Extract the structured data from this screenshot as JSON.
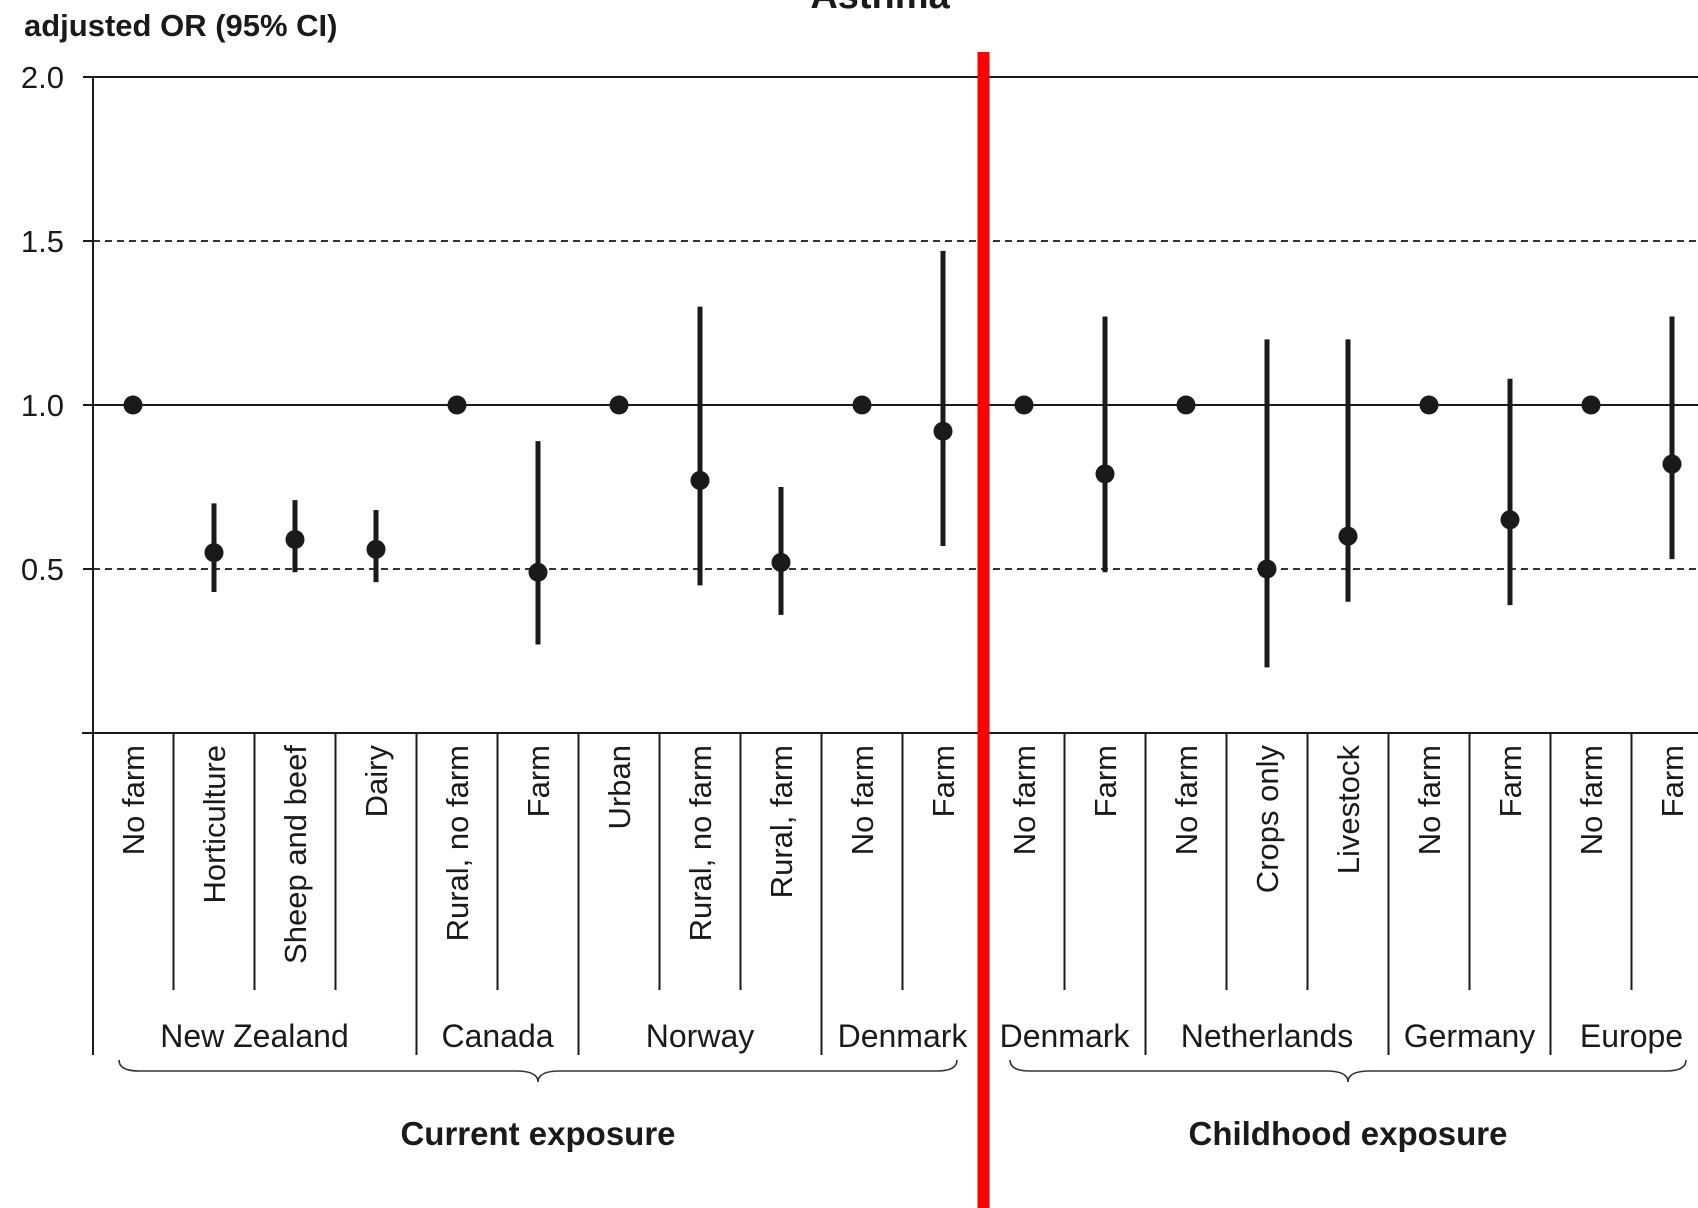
{
  "chart_data": {
    "type": "scatter",
    "title": "Asthma",
    "ylabel": "adjusted OR (95% CI)",
    "ylim": [
      0,
      2.0
    ],
    "yticks": [
      "2.0",
      "1.5",
      "1.0",
      "0.5"
    ],
    "ytick_values": [
      2.0,
      1.5,
      1.0,
      0.5
    ],
    "reference_value": 1.0,
    "dashed_gridlines": [
      1.5,
      0.5
    ],
    "categories": [
      "No farm",
      "Horticulture",
      "Sheep and beef",
      "Dairy",
      "Rural, no farm",
      "Farm",
      "Urban",
      "Rural, no farm",
      "Rural, farm",
      "No farm",
      "Farm",
      "No farm",
      "Farm",
      "No farm",
      "Crops only",
      "Livestock",
      "No farm",
      "Farm",
      "No farm",
      "Farm"
    ],
    "values": [
      1.0,
      0.55,
      0.59,
      0.56,
      1.0,
      0.49,
      1.0,
      0.77,
      0.52,
      1.0,
      0.92,
      1.0,
      0.79,
      1.0,
      0.5,
      0.6,
      1.0,
      0.65,
      1.0,
      0.82
    ],
    "ci_low": [
      null,
      0.43,
      0.49,
      0.46,
      null,
      0.27,
      null,
      0.45,
      0.36,
      null,
      0.57,
      null,
      0.49,
      null,
      0.2,
      0.4,
      null,
      0.39,
      null,
      0.53
    ],
    "ci_high": [
      null,
      0.7,
      0.71,
      0.68,
      null,
      0.89,
      null,
      1.3,
      0.75,
      null,
      1.47,
      null,
      1.27,
      null,
      1.2,
      1.2,
      null,
      1.08,
      null,
      1.27
    ],
    "countries": [
      {
        "name": "New Zealand",
        "start": 0,
        "end": 3
      },
      {
        "name": "Canada",
        "start": 4,
        "end": 5
      },
      {
        "name": "Norway",
        "start": 6,
        "end": 8
      },
      {
        "name": "Denmark",
        "start": 9,
        "end": 10
      },
      {
        "name": "Denmark",
        "start": 11,
        "end": 12
      },
      {
        "name": "Netherlands",
        "start": 13,
        "end": 15
      },
      {
        "name": "Germany",
        "start": 16,
        "end": 17
      },
      {
        "name": "Europe",
        "start": 18,
        "end": 19
      }
    ],
    "exposure_groups": [
      {
        "name": "Current exposure",
        "start": 0,
        "end": 10
      },
      {
        "name": "Childhood exposure",
        "start": 11,
        "end": 19
      }
    ],
    "colors": {
      "marker": "#1a1a1a",
      "axis": "#1a1a1a",
      "divider": "#ff0000"
    }
  }
}
